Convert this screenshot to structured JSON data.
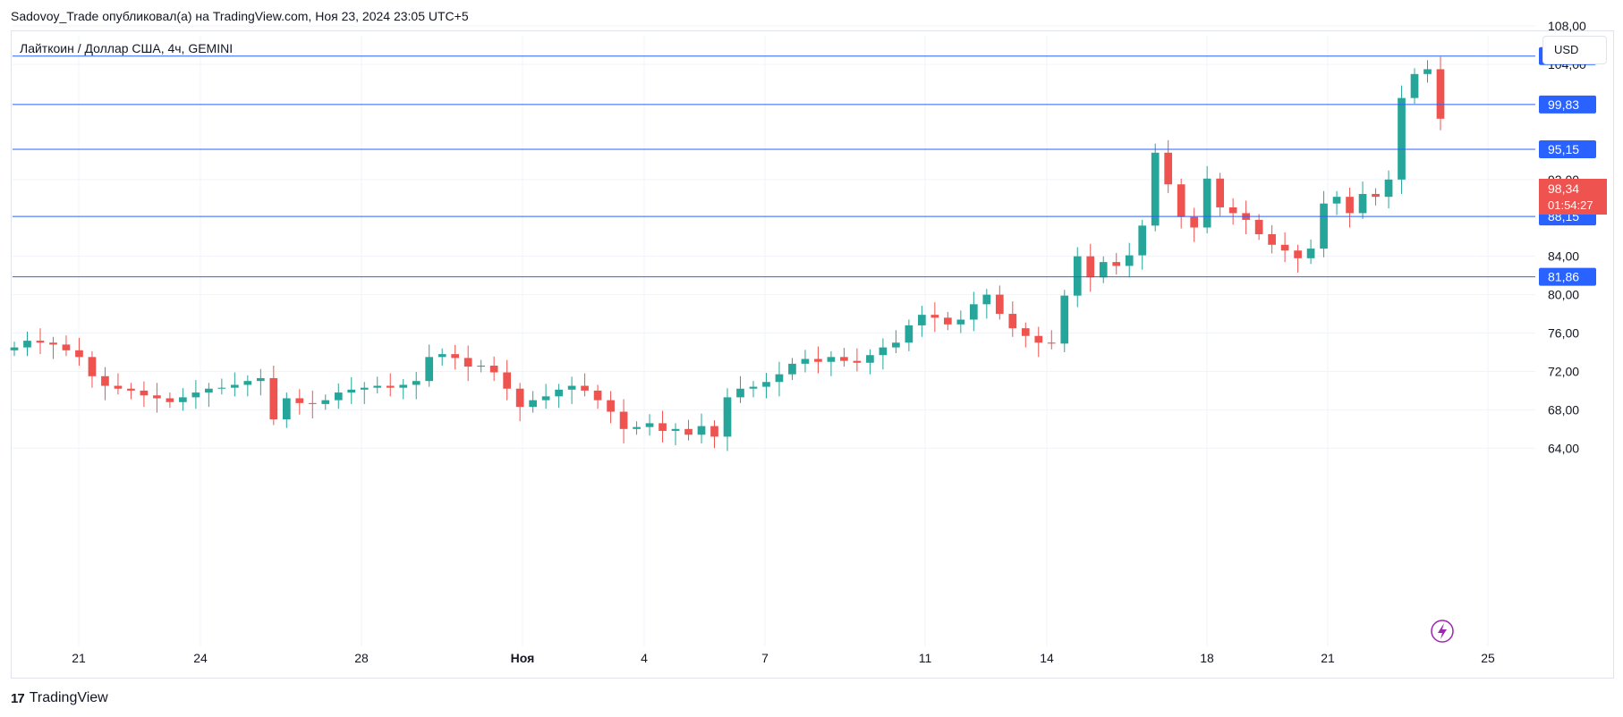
{
  "header": {
    "publisher_line": "Sadovoy_Trade опубликовал(а) на TradingView.com, Ноя 23, 2024 23:05 UTC+5"
  },
  "symbol": {
    "title": "Лайткоин / Доллар США, 4ч, GEMINI"
  },
  "toolbar": {
    "currency_label": "USD"
  },
  "footer": {
    "brand": "TradingView",
    "brand_mark": "17"
  },
  "colors": {
    "up": "#26a69a",
    "down": "#ef5350",
    "level_line": "#2962ff",
    "grid": "#f0f3fa",
    "last_price_bg": "#ef5350"
  },
  "last_price": {
    "value": "98,34",
    "countdown": "01:54:27"
  },
  "chart_data": {
    "type": "candlestick",
    "title": "Лайткоин / Доллар США, 4ч, GEMINI",
    "x_tick_labels": [
      "21",
      "24",
      "28",
      "Ноя",
      "4",
      "7",
      "11",
      "14",
      "18",
      "21",
      "25"
    ],
    "y_tick_labels": [
      "108,00",
      "104,00",
      "92,00",
      "84,00",
      "80,00",
      "76,00",
      "72,00",
      "68,00",
      "64,00"
    ],
    "ylim": [
      60,
      110
    ],
    "grid": true,
    "horizontal_levels": [
      {
        "value": 104.87,
        "label": "104,87"
      },
      {
        "value": 99.83,
        "label": "99,83"
      },
      {
        "value": 95.15,
        "label": "95,15"
      },
      {
        "value": 88.15,
        "label": "88,15"
      },
      {
        "value": 81.86,
        "label": "81,86"
      }
    ],
    "last_price": 98.34,
    "close_series": [
      74.5,
      75.2,
      75.0,
      74.8,
      74.2,
      73.5,
      71.5,
      70.5,
      70.2,
      70.0,
      69.5,
      69.2,
      68.8,
      69.3,
      69.8,
      70.2,
      70.3,
      70.6,
      71.0,
      71.3,
      67.0,
      69.2,
      68.7,
      68.6,
      69.0,
      69.8,
      70.1,
      70.3,
      70.5,
      70.3,
      70.6,
      71.0,
      73.5,
      73.8,
      73.4,
      72.5,
      72.6,
      71.9,
      70.2,
      68.3,
      69.0,
      69.4,
      70.1,
      70.5,
      70.0,
      69.0,
      67.8,
      66.0,
      66.2,
      66.6,
      65.8,
      66.0,
      65.4,
      66.3,
      65.2,
      69.3,
      70.2,
      70.4,
      70.9,
      71.7,
      72.8,
      73.3,
      73.0,
      73.5,
      73.1,
      72.9,
      73.7,
      74.5,
      75.0,
      76.8,
      77.9,
      77.6,
      76.9,
      77.4,
      79.0,
      80.0,
      78.0,
      76.5,
      75.7,
      75.0,
      74.9,
      79.9,
      84.0,
      81.8,
      83.4,
      83.0,
      84.1,
      87.2,
      94.8,
      91.5,
      88.1,
      87.0,
      92.1,
      89.1,
      88.5,
      87.8,
      86.3,
      85.2,
      84.6,
      83.8,
      84.8,
      89.5,
      90.2,
      88.5,
      90.5,
      90.2,
      92.0,
      100.5,
      103.0,
      103.5,
      98.34
    ]
  }
}
